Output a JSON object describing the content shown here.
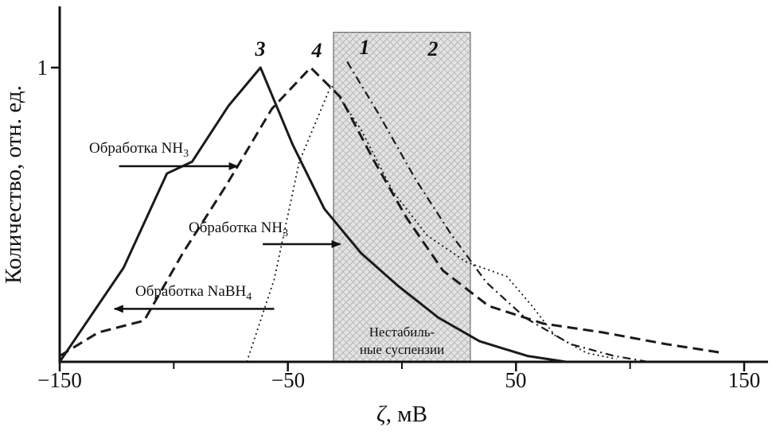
{
  "chart_data": {
    "type": "line",
    "title": "",
    "xlabel": "ζ, мВ",
    "xlabel_parts": [
      "ζ",
      ", мВ"
    ],
    "ylabel": "Количество, отн. ед.",
    "xlim": [
      -150,
      160
    ],
    "ylim": [
      0,
      1.2
    ],
    "grid": false,
    "legend_position": "none",
    "x_tick_values": [
      -150,
      -50,
      50,
      150
    ],
    "x_tick_labels": [
      "−150",
      "−50",
      "50",
      "150"
    ],
    "x_minor_ticks": [
      -100,
      0,
      100
    ],
    "y_tick_values": [
      1
    ],
    "y_tick_labels": [
      "1"
    ],
    "curve_labels": [
      "1",
      "2",
      "3",
      "4"
    ],
    "series": [
      {
        "name": "1",
        "style": "dotted",
        "points": [
          [
            -68,
            0
          ],
          [
            -56,
            0.28
          ],
          [
            -45,
            0.68
          ],
          [
            -31,
            0.94
          ],
          [
            -18,
            0.79
          ],
          [
            -4,
            0.58
          ],
          [
            11,
            0.43
          ],
          [
            28,
            0.34
          ],
          [
            46,
            0.29
          ],
          [
            57,
            0.19
          ],
          [
            67,
            0.09
          ],
          [
            81,
            0.03
          ],
          [
            94,
            0.01
          ]
        ]
      },
      {
        "name": "2",
        "style": "dashdot",
        "points": [
          [
            -24,
            1.02
          ],
          [
            -10,
            0.84
          ],
          [
            6,
            0.62
          ],
          [
            21,
            0.44
          ],
          [
            37,
            0.27
          ],
          [
            54,
            0.15
          ],
          [
            74,
            0.06
          ],
          [
            93,
            0.02
          ],
          [
            108,
            0
          ]
        ]
      },
      {
        "name": "4",
        "style": "dashed",
        "points": [
          [
            -150,
            0.02
          ],
          [
            -133,
            0.1
          ],
          [
            -113,
            0.14
          ],
          [
            -96,
            0.37
          ],
          [
            -77,
            0.6
          ],
          [
            -57,
            0.86
          ],
          [
            -40,
            1.0
          ],
          [
            -27,
            0.9
          ],
          [
            -12,
            0.68
          ],
          [
            2,
            0.49
          ],
          [
            18,
            0.31
          ],
          [
            38,
            0.19
          ],
          [
            62,
            0.13
          ],
          [
            88,
            0.1
          ],
          [
            116,
            0.06
          ],
          [
            141,
            0.03
          ]
        ]
      },
      {
        "name": "3",
        "style": "solid",
        "points": [
          [
            -150,
            0
          ],
          [
            -122,
            0.32
          ],
          [
            -103,
            0.64
          ],
          [
            -92,
            0.68
          ],
          [
            -76,
            0.87
          ],
          [
            -62,
            1.0
          ],
          [
            -48,
            0.74
          ],
          [
            -34,
            0.52
          ],
          [
            -18,
            0.37
          ],
          [
            -2,
            0.26
          ],
          [
            16,
            0.15
          ],
          [
            34,
            0.07
          ],
          [
            55,
            0.02
          ],
          [
            72,
            0
          ]
        ]
      }
    ],
    "unstable_region": {
      "x_from_mv": -30,
      "x_to_mv": 30,
      "top": 1.12,
      "label_line1": "Нестабиль-",
      "label_line2": "ные суспензии"
    },
    "annotations": [
      {
        "label": "Обработка NH",
        "sub": "3"
      },
      {
        "label": "Обработка NH",
        "sub": "3"
      },
      {
        "label": "Обработка NaBH",
        "sub": "4"
      }
    ],
    "arrows": [
      {
        "x1": -124,
        "y1": 0.665,
        "x2": -72,
        "y2": 0.665
      },
      {
        "x1": -61,
        "y1": 0.4,
        "x2": -27,
        "y2": 0.4
      },
      {
        "x1": -56,
        "y1": 0.18,
        "x2": -126,
        "y2": 0.18
      }
    ],
    "colors": {
      "axis": "#111111",
      "curve": "#1a1a1a",
      "hatch_line": "#969696",
      "hatch_bg": "#e3e3e3",
      "region_border": "#555555"
    }
  }
}
